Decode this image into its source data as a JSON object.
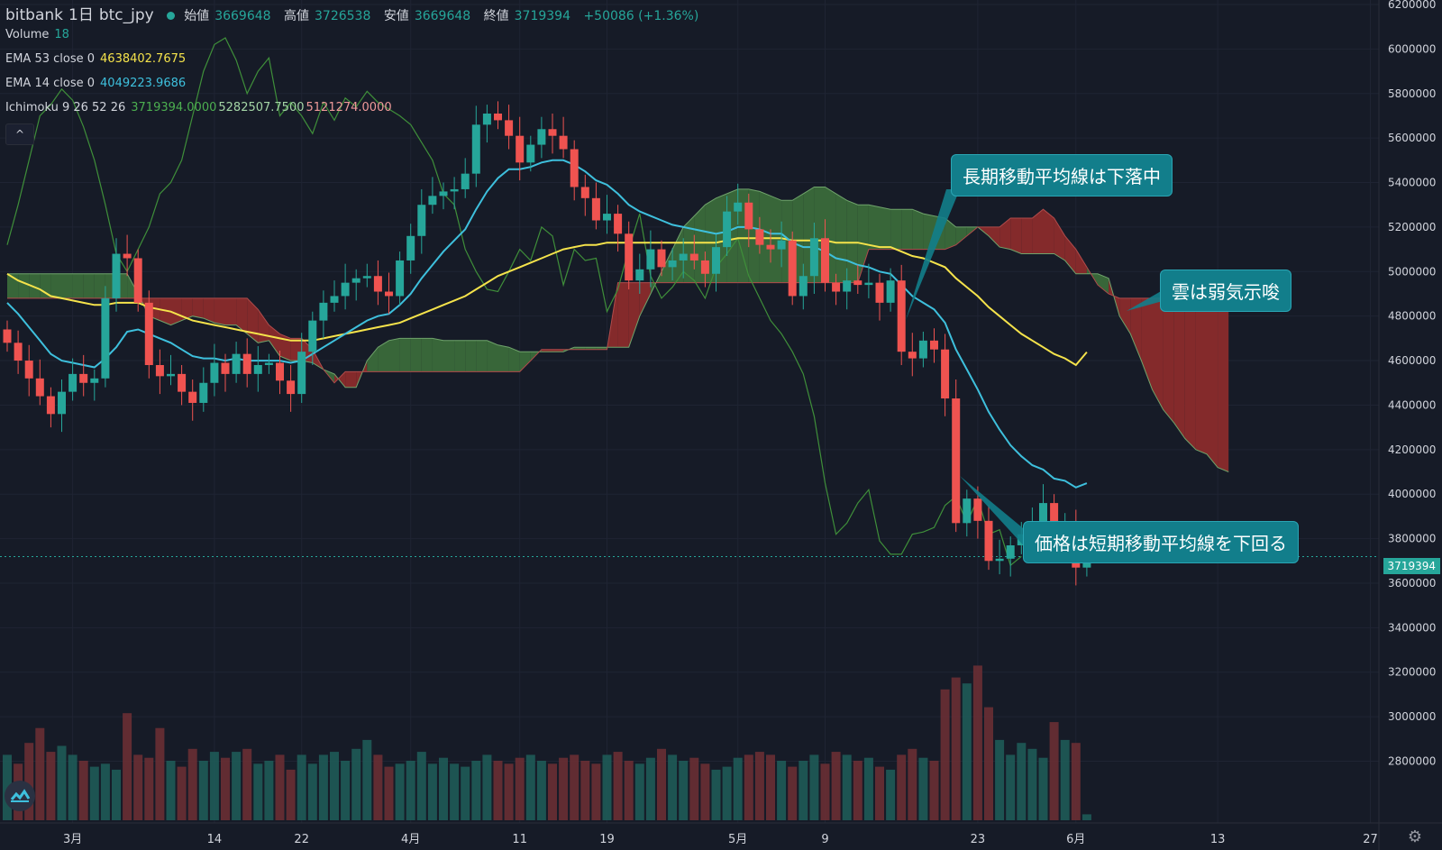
{
  "header": {
    "exchange": "bitbank",
    "interval": "1日",
    "pair": "btc_jpy",
    "ohlc": [
      {
        "label": "始値",
        "value": "3669648"
      },
      {
        "label": "高値",
        "value": "3726538"
      },
      {
        "label": "安値",
        "value": "3669648"
      },
      {
        "label": "終値",
        "value": "3719394"
      }
    ],
    "change": "+50086 (+1.36%)"
  },
  "indicators": {
    "volume": {
      "label": "Volume",
      "value": "18"
    },
    "ema53": {
      "label": "EMA 53 close 0",
      "value": "4638402.7675"
    },
    "ema14": {
      "label": "EMA 14 close 0",
      "value": "4049223.9686"
    },
    "ichimoku": {
      "label": "Ichimoku 9 26 52 26",
      "values": [
        "3719394.0000",
        "5282507.7500",
        "5121274.0000"
      ]
    }
  },
  "collapse_button": "^",
  "annotations": {
    "long_ma": "長期移動平均線は下落中",
    "cloud": "雲は弱気示唆",
    "price": "価格は短期移動平均線を下回る"
  },
  "last_price": "3719394",
  "colors": {
    "background": "#161b27",
    "up": "#26a69a",
    "down": "#ef5350",
    "ema53": "#f5e34b",
    "ema14": "#3ec0dd",
    "lagging": "#3f8f3a",
    "cloud_bull": "#3a6a3a",
    "cloud_bear": "#8a2b2b",
    "callout": "#127e8b"
  },
  "chart_data": {
    "type": "candlestick",
    "y_ticks": [
      "6200000",
      "6000000",
      "5800000",
      "5600000",
      "5400000",
      "5200000",
      "5000000",
      "4800000",
      "4600000",
      "4400000",
      "4200000",
      "4000000",
      "3800000",
      "3600000",
      "3400000",
      "3200000",
      "3000000",
      "2800000"
    ],
    "x_ticks": [
      {
        "label": "3月",
        "day": 6
      },
      {
        "label": "14",
        "day": 19
      },
      {
        "label": "22",
        "day": 27
      },
      {
        "label": "4月",
        "day": 37
      },
      {
        "label": "11",
        "day": 47
      },
      {
        "label": "19",
        "day": 55
      },
      {
        "label": "5月",
        "day": 67
      },
      {
        "label": "9",
        "day": 75
      },
      {
        "label": "23",
        "day": 89
      },
      {
        "label": "6月",
        "day": 98
      },
      {
        "label": "13",
        "day": 111
      },
      {
        "label": "27",
        "day": 125
      }
    ],
    "closes": [
      4680000,
      4600000,
      4520000,
      4440000,
      4360000,
      4460000,
      4540000,
      4500000,
      4520000,
      4880000,
      5080000,
      5060000,
      4860000,
      4580000,
      4530000,
      4540000,
      4460000,
      4410000,
      4500000,
      4590000,
      4540000,
      4630000,
      4540000,
      4580000,
      4590000,
      4510000,
      4450000,
      4640000,
      4780000,
      4860000,
      4890000,
      4950000,
      4970000,
      4980000,
      4910000,
      4890000,
      5050000,
      5160000,
      5300000,
      5340000,
      5360000,
      5370000,
      5440000,
      5660000,
      5710000,
      5680000,
      5610000,
      5490000,
      5570000,
      5640000,
      5610000,
      5550000,
      5380000,
      5330000,
      5230000,
      5260000,
      5170000,
      4960000,
      5010000,
      5100000,
      5020000,
      5050000,
      5080000,
      5050000,
      4990000,
      5110000,
      5270000,
      5310000,
      5190000,
      5120000,
      5100000,
      5140000,
      4890000,
      4980000,
      5150000,
      4950000,
      4910000,
      4960000,
      4940000,
      4950000,
      4860000,
      4960000,
      4640000,
      4610000,
      4690000,
      4650000,
      4430000,
      3870000,
      3980000,
      3880000,
      3700000,
      3710000,
      3770000,
      3820000,
      3870000,
      3960000,
      3780000,
      3860000,
      3670000,
      3720000
    ],
    "volumes": [
      22,
      19,
      26,
      31,
      23,
      25,
      22,
      20,
      18,
      19,
      17,
      36,
      22,
      21,
      31,
      20,
      18,
      24,
      20,
      23,
      21,
      23,
      24,
      19,
      20,
      22,
      17,
      22,
      19,
      22,
      23,
      20,
      24,
      27,
      22,
      18,
      19,
      20,
      23,
      19,
      21,
      19,
      18,
      20,
      22,
      20,
      19,
      21,
      22,
      20,
      19,
      21,
      22,
      20,
      19,
      22,
      23,
      20,
      19,
      21,
      24,
      22,
      20,
      21,
      19,
      17,
      18,
      21,
      22,
      23,
      22,
      20,
      18,
      20,
      22,
      19,
      23,
      22,
      20,
      21,
      18,
      17,
      22,
      24,
      21,
      20,
      44,
      48,
      46,
      52,
      38,
      27,
      22,
      26,
      24,
      21,
      33,
      27,
      26,
      2
    ],
    "ema14": [
      4860000,
      4810000,
      4750000,
      4690000,
      4630000,
      4600000,
      4590000,
      4580000,
      4570000,
      4610000,
      4660000,
      4730000,
      4740000,
      4720000,
      4700000,
      4680000,
      4650000,
      4620000,
      4610000,
      4610000,
      4600000,
      4610000,
      4600000,
      4600000,
      4600000,
      4600000,
      4590000,
      4600000,
      4630000,
      4660000,
      4690000,
      4720000,
      4750000,
      4780000,
      4800000,
      4810000,
      4850000,
      4900000,
      4970000,
      5030000,
      5090000,
      5140000,
      5190000,
      5280000,
      5360000,
      5420000,
      5460000,
      5460000,
      5470000,
      5490000,
      5500000,
      5500000,
      5480000,
      5450000,
      5410000,
      5390000,
      5350000,
      5300000,
      5270000,
      5250000,
      5230000,
      5210000,
      5200000,
      5190000,
      5180000,
      5170000,
      5180000,
      5200000,
      5200000,
      5190000,
      5170000,
      5170000,
      5130000,
      5110000,
      5110000,
      5090000,
      5060000,
      5050000,
      5030000,
      5020000,
      5000000,
      4990000,
      4940000,
      4890000,
      4860000,
      4830000,
      4770000,
      4650000,
      4560000,
      4470000,
      4370000,
      4290000,
      4220000,
      4170000,
      4130000,
      4110000,
      4070000,
      4060000,
      4030000,
      4049224
    ],
    "ema53": [
      4990000,
      4960000,
      4940000,
      4920000,
      4890000,
      4880000,
      4870000,
      4860000,
      4850000,
      4850000,
      4860000,
      4860000,
      4860000,
      4840000,
      4830000,
      4820000,
      4800000,
      4780000,
      4770000,
      4760000,
      4750000,
      4740000,
      4730000,
      4720000,
      4710000,
      4700000,
      4690000,
      4690000,
      4690000,
      4700000,
      4710000,
      4720000,
      4730000,
      4740000,
      4750000,
      4760000,
      4770000,
      4790000,
      4810000,
      4830000,
      4850000,
      4870000,
      4890000,
      4920000,
      4950000,
      4980000,
      5000000,
      5020000,
      5040000,
      5060000,
      5080000,
      5100000,
      5110000,
      5120000,
      5120000,
      5130000,
      5130000,
      5130000,
      5130000,
      5130000,
      5130000,
      5130000,
      5130000,
      5130000,
      5130000,
      5130000,
      5140000,
      5150000,
      5150000,
      5150000,
      5150000,
      5150000,
      5140000,
      5140000,
      5140000,
      5140000,
      5130000,
      5130000,
      5130000,
      5120000,
      5110000,
      5110000,
      5090000,
      5070000,
      5060000,
      5040000,
      5020000,
      4970000,
      4930000,
      4890000,
      4840000,
      4800000,
      4760000,
      4720000,
      4690000,
      4660000,
      4630000,
      4610000,
      4580000,
      4638403
    ],
    "lagging_span": [
      5120000,
      5300000,
      5500000,
      5700000,
      5750000,
      5820000,
      5770000,
      5650000,
      5500000,
      5300000,
      5080000,
      5000000,
      5100000,
      5200000,
      5350000,
      5400000,
      5500000,
      5700000,
      5900000,
      6020000,
      6050000,
      5950000,
      5800000,
      5900000,
      5960000,
      5700000,
      5760000,
      5700000,
      5620000,
      5760000,
      5680000,
      5780000,
      5740000,
      5810000,
      5760000,
      5730000,
      5700000,
      5660000,
      5580000,
      5500000,
      5350000,
      5300000,
      5100000,
      5000000,
      4920000,
      4910000,
      5000000,
      5100000,
      5050000,
      5200000,
      5160000,
      4940000,
      5100000,
      5050000,
      5060000,
      4820000,
      4920000,
      5100000,
      5260000,
      4980000,
      4880000,
      4930000,
      5000000,
      4960000,
      4880000,
      5020000,
      5080000,
      5150000,
      4980000,
      4880000,
      4780000,
      4720000,
      4640000,
      4540000,
      4350000,
      4050000,
      3820000,
      3870000,
      3960000,
      4020000,
      3790000,
      3730000,
      3730000,
      3820000,
      3830000,
      3850000,
      3950000,
      3990000,
      3870000,
      3980000,
      3820000,
      3840000,
      3680000,
      3720000
    ],
    "senkou_a": [
      4990000,
      4990000,
      4990000,
      4990000,
      4990000,
      4990000,
      4990000,
      4990000,
      4990000,
      4990000,
      4990000,
      4990000,
      4900000,
      4800000,
      4780000,
      4760000,
      4780000,
      4800000,
      4790000,
      4770000,
      4760000,
      4760000,
      4720000,
      4680000,
      4690000,
      4620000,
      4600000,
      4600000,
      4590000,
      4560000,
      4540000,
      4480000,
      4480000,
      4600000,
      4660000,
      4690000,
      4700000,
      4700000,
      4700000,
      4700000,
      4690000,
      4690000,
      4690000,
      4690000,
      4690000,
      4670000,
      4660000,
      4640000,
      4640000,
      4640000,
      4640000,
      4640000,
      4660000,
      4660000,
      4660000,
      4660000,
      4660000,
      4660000,
      4800000,
      4900000,
      5000000,
      5100000,
      5200000,
      5250000,
      5300000,
      5330000,
      5350000,
      5370000,
      5370000,
      5360000,
      5340000,
      5320000,
      5320000,
      5350000,
      5380000,
      5380000,
      5350000,
      5320000,
      5300000,
      5300000,
      5290000,
      5280000,
      5280000,
      5280000,
      5260000,
      5250000,
      5240000,
      5200000,
      5200000,
      5200000,
      5160000,
      5110000,
      5100000,
      5080000,
      5080000,
      5080000,
      5080000,
      5050000,
      4990000,
      4990000,
      4990000,
      4970000,
      4800000,
      4720000,
      4600000,
      4470000,
      4380000,
      4320000,
      4250000,
      4200000,
      4180000,
      4120000,
      4100000
    ],
    "senkou_b": [
      4880000,
      4880000,
      4880000,
      4880000,
      4880000,
      4880000,
      4880000,
      4880000,
      4880000,
      4880000,
      4880000,
      4880000,
      4880000,
      4880000,
      4880000,
      4880000,
      4880000,
      4880000,
      4880000,
      4880000,
      4880000,
      4880000,
      4880000,
      4830000,
      4760000,
      4720000,
      4700000,
      4700000,
      4650000,
      4560000,
      4500000,
      4550000,
      4550000,
      4550000,
      4550000,
      4550000,
      4550000,
      4550000,
      4550000,
      4550000,
      4550000,
      4550000,
      4550000,
      4550000,
      4550000,
      4550000,
      4550000,
      4550000,
      4600000,
      4650000,
      4650000,
      4650000,
      4650000,
      4650000,
      4650000,
      4650000,
      4950000,
      4950000,
      4950000,
      4950000,
      4950000,
      4950000,
      4950000,
      4950000,
      4950000,
      4950000,
      4950000,
      4950000,
      4950000,
      4950000,
      4950000,
      4950000,
      4950000,
      4950000,
      4950000,
      4950000,
      4950000,
      4950000,
      4950000,
      5100000,
      5100000,
      5100000,
      5100000,
      5100000,
      5100000,
      5100000,
      5100000,
      5120000,
      5160000,
      5200000,
      5200000,
      5200000,
      5240000,
      5240000,
      5240000,
      5280000,
      5240000,
      5160000,
      5100000,
      5020000,
      4940000,
      4900000,
      4880000,
      4880000,
      4880000,
      4880000,
      4880000,
      4880000,
      4880000,
      4880000,
      4880000,
      4880000,
      4880000
    ]
  }
}
